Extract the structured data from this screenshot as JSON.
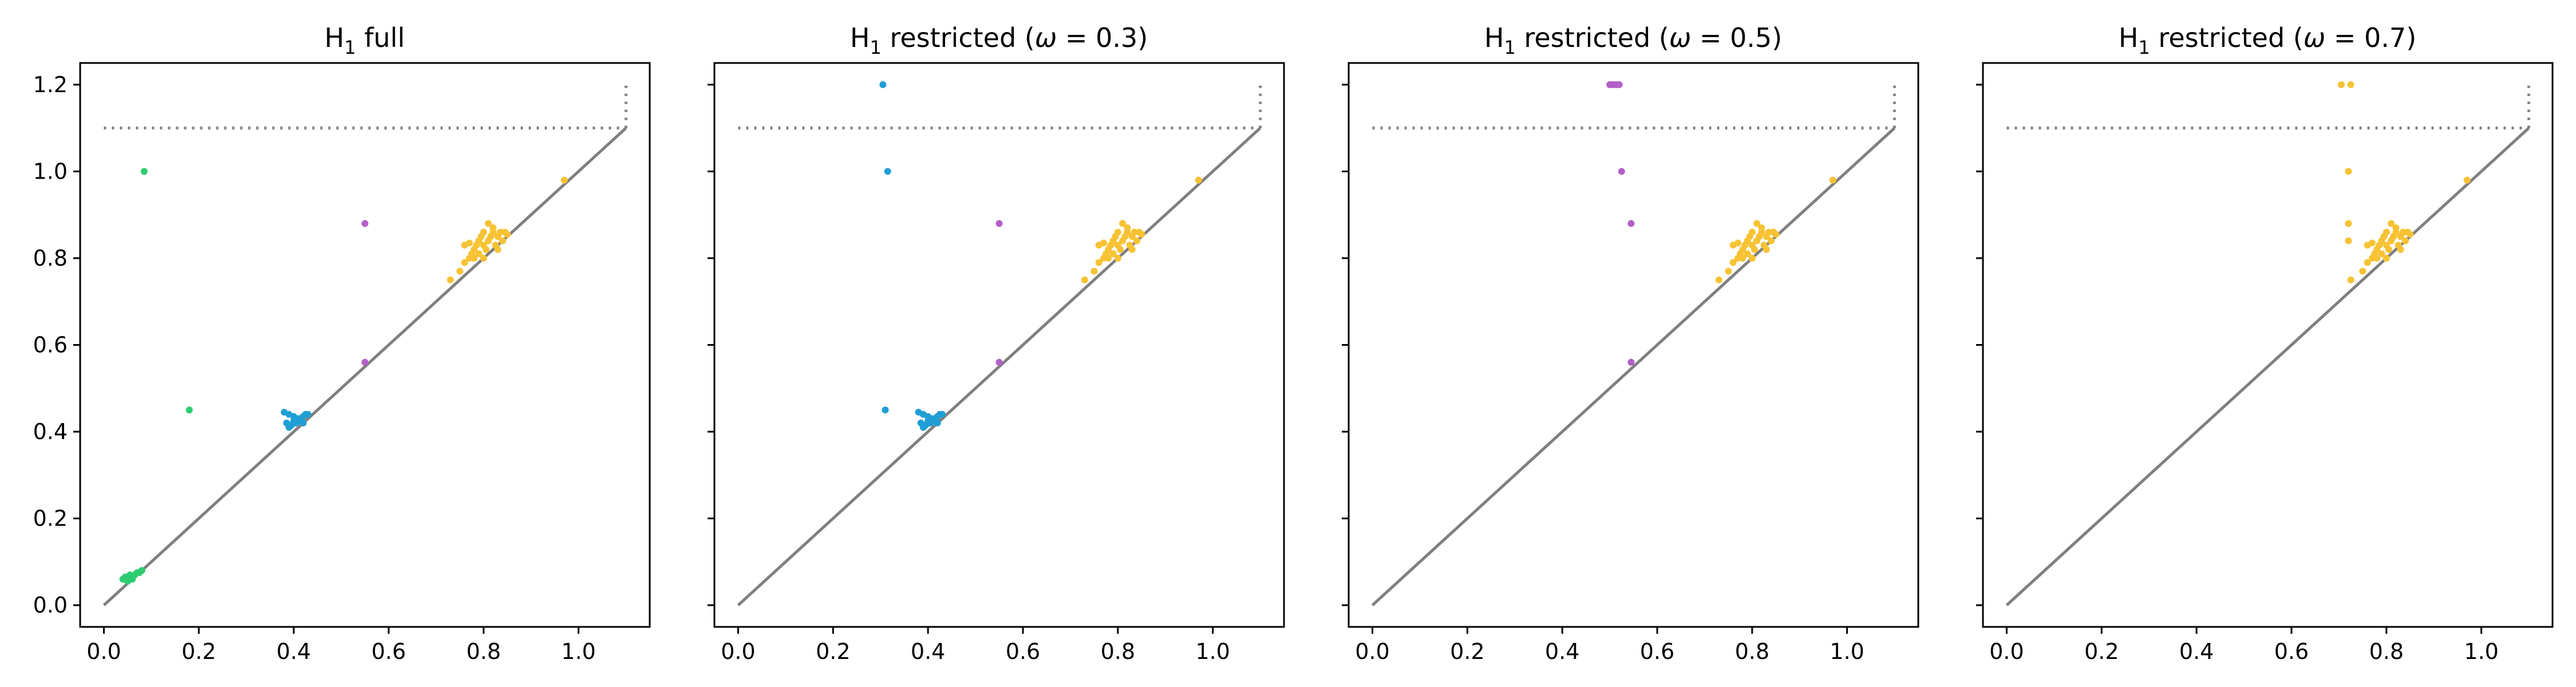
{
  "chart_data": [
    {
      "type": "scatter",
      "title_main": "H",
      "title_sub": "1",
      "title_rest": " full",
      "xlim": [
        -0.05,
        1.15
      ],
      "ylim": [
        -0.05,
        1.25
      ],
      "xticks": [
        "0.0",
        "0.2",
        "0.4",
        "0.6",
        "0.8",
        "1.0"
      ],
      "yticks": [
        "0.0",
        "0.2",
        "0.4",
        "0.6",
        "0.8",
        "1.0",
        "1.2"
      ],
      "show_ytick_labels": true,
      "diagonal": [
        0,
        1.1
      ],
      "infinity_line_y": 1.1,
      "series": [
        {
          "color": "#2ecc71",
          "points": [
            [
              0.04,
              0.06
            ],
            [
              0.045,
              0.065
            ],
            [
              0.05,
              0.06
            ],
            [
              0.055,
              0.07
            ],
            [
              0.06,
              0.065
            ],
            [
              0.065,
              0.07
            ],
            [
              0.07,
              0.075
            ],
            [
              0.075,
              0.075
            ],
            [
              0.08,
              0.08
            ],
            [
              0.05,
              0.055
            ],
            [
              0.06,
              0.06
            ],
            [
              0.085,
              1.0
            ],
            [
              0.18,
              0.45
            ]
          ]
        },
        {
          "color": "#1f9fd5",
          "points": [
            [
              0.38,
              0.445
            ],
            [
              0.39,
              0.44
            ],
            [
              0.4,
              0.435
            ],
            [
              0.39,
              0.41
            ],
            [
              0.395,
              0.415
            ],
            [
              0.4,
              0.42
            ],
            [
              0.405,
              0.42
            ],
            [
              0.41,
              0.425
            ],
            [
              0.415,
              0.43
            ],
            [
              0.42,
              0.435
            ],
            [
              0.425,
              0.44
            ],
            [
              0.43,
              0.44
            ],
            [
              0.4,
              0.425
            ],
            [
              0.41,
              0.43
            ],
            [
              0.42,
              0.42
            ],
            [
              0.385,
              0.42
            ]
          ]
        },
        {
          "color": "#b45fc9",
          "points": [
            [
              0.55,
              0.88
            ],
            [
              0.55,
              0.56
            ]
          ]
        },
        {
          "color": "#f7c234",
          "points": [
            [
              0.73,
              0.75
            ],
            [
              0.75,
              0.77
            ],
            [
              0.76,
              0.79
            ],
            [
              0.77,
              0.8
            ],
            [
              0.775,
              0.81
            ],
            [
              0.78,
              0.82
            ],
            [
              0.785,
              0.83
            ],
            [
              0.79,
              0.84
            ],
            [
              0.795,
              0.85
            ],
            [
              0.8,
              0.86
            ],
            [
              0.805,
              0.82
            ],
            [
              0.81,
              0.84
            ],
            [
              0.815,
              0.85
            ],
            [
              0.82,
              0.87
            ],
            [
              0.825,
              0.83
            ],
            [
              0.83,
              0.85
            ],
            [
              0.835,
              0.86
            ],
            [
              0.84,
              0.84
            ],
            [
              0.845,
              0.86
            ],
            [
              0.85,
              0.855
            ],
            [
              0.8,
              0.8
            ],
            [
              0.79,
              0.81
            ],
            [
              0.81,
              0.88
            ],
            [
              0.82,
              0.86
            ],
            [
              0.78,
              0.8
            ],
            [
              0.76,
              0.83
            ],
            [
              0.77,
              0.835
            ],
            [
              0.8,
              0.83
            ],
            [
              0.83,
              0.82
            ],
            [
              0.97,
              0.98
            ]
          ]
        }
      ]
    },
    {
      "type": "scatter",
      "title_main": "H",
      "title_sub": "1",
      "title_rest": " restricted (",
      "title_omega": "ω",
      "title_value": " = 0.3)",
      "xlim": [
        -0.05,
        1.15
      ],
      "ylim": [
        -0.05,
        1.25
      ],
      "xticks": [
        "0.0",
        "0.2",
        "0.4",
        "0.6",
        "0.8",
        "1.0"
      ],
      "yticks": [
        "0.0",
        "0.2",
        "0.4",
        "0.6",
        "0.8",
        "1.0",
        "1.2"
      ],
      "show_ytick_labels": false,
      "diagonal": [
        0,
        1.1
      ],
      "infinity_line_y": 1.1,
      "series": [
        {
          "color": "#1f9fd5",
          "points": [
            [
              0.305,
              1.2
            ],
            [
              0.315,
              1.0
            ],
            [
              0.31,
              0.45
            ],
            [
              0.38,
              0.445
            ],
            [
              0.39,
              0.44
            ],
            [
              0.4,
              0.435
            ],
            [
              0.39,
              0.41
            ],
            [
              0.395,
              0.415
            ],
            [
              0.4,
              0.42
            ],
            [
              0.405,
              0.42
            ],
            [
              0.41,
              0.425
            ],
            [
              0.415,
              0.43
            ],
            [
              0.42,
              0.435
            ],
            [
              0.425,
              0.44
            ],
            [
              0.43,
              0.44
            ],
            [
              0.4,
              0.425
            ],
            [
              0.41,
              0.43
            ],
            [
              0.42,
              0.42
            ],
            [
              0.385,
              0.42
            ]
          ]
        },
        {
          "color": "#b45fc9",
          "points": [
            [
              0.55,
              0.88
            ],
            [
              0.55,
              0.56
            ]
          ]
        },
        {
          "color": "#f7c234",
          "points": [
            [
              0.73,
              0.75
            ],
            [
              0.75,
              0.77
            ],
            [
              0.76,
              0.79
            ],
            [
              0.77,
              0.8
            ],
            [
              0.775,
              0.81
            ],
            [
              0.78,
              0.82
            ],
            [
              0.785,
              0.83
            ],
            [
              0.79,
              0.84
            ],
            [
              0.795,
              0.85
            ],
            [
              0.8,
              0.86
            ],
            [
              0.805,
              0.82
            ],
            [
              0.81,
              0.84
            ],
            [
              0.815,
              0.85
            ],
            [
              0.82,
              0.87
            ],
            [
              0.825,
              0.83
            ],
            [
              0.83,
              0.85
            ],
            [
              0.835,
              0.86
            ],
            [
              0.84,
              0.84
            ],
            [
              0.845,
              0.86
            ],
            [
              0.85,
              0.855
            ],
            [
              0.8,
              0.8
            ],
            [
              0.79,
              0.81
            ],
            [
              0.81,
              0.88
            ],
            [
              0.82,
              0.86
            ],
            [
              0.78,
              0.8
            ],
            [
              0.76,
              0.83
            ],
            [
              0.77,
              0.835
            ],
            [
              0.8,
              0.83
            ],
            [
              0.83,
              0.82
            ],
            [
              0.97,
              0.98
            ]
          ]
        }
      ]
    },
    {
      "type": "scatter",
      "title_main": "H",
      "title_sub": "1",
      "title_rest": " restricted (",
      "title_omega": "ω",
      "title_value": " = 0.5)",
      "xlim": [
        -0.05,
        1.15
      ],
      "ylim": [
        -0.05,
        1.25
      ],
      "xticks": [
        "0.0",
        "0.2",
        "0.4",
        "0.6",
        "0.8",
        "1.0"
      ],
      "yticks": [
        "0.0",
        "0.2",
        "0.4",
        "0.6",
        "0.8",
        "1.0",
        "1.2"
      ],
      "show_ytick_labels": false,
      "diagonal": [
        0,
        1.1
      ],
      "infinity_line_y": 1.1,
      "series": [
        {
          "color": "#b45fc9",
          "points": [
            [
              0.5,
              1.2
            ],
            [
              0.505,
              1.2
            ],
            [
              0.51,
              1.2
            ],
            [
              0.515,
              1.2
            ],
            [
              0.52,
              1.2
            ],
            [
              0.525,
              1.0
            ],
            [
              0.545,
              0.88
            ],
            [
              0.545,
              0.56
            ]
          ]
        },
        {
          "color": "#f7c234",
          "points": [
            [
              0.73,
              0.75
            ],
            [
              0.75,
              0.77
            ],
            [
              0.76,
              0.79
            ],
            [
              0.77,
              0.8
            ],
            [
              0.775,
              0.81
            ],
            [
              0.78,
              0.82
            ],
            [
              0.785,
              0.83
            ],
            [
              0.79,
              0.84
            ],
            [
              0.795,
              0.85
            ],
            [
              0.8,
              0.86
            ],
            [
              0.805,
              0.82
            ],
            [
              0.81,
              0.84
            ],
            [
              0.815,
              0.85
            ],
            [
              0.82,
              0.87
            ],
            [
              0.825,
              0.83
            ],
            [
              0.83,
              0.85
            ],
            [
              0.835,
              0.86
            ],
            [
              0.84,
              0.84
            ],
            [
              0.845,
              0.86
            ],
            [
              0.85,
              0.855
            ],
            [
              0.8,
              0.8
            ],
            [
              0.79,
              0.81
            ],
            [
              0.81,
              0.88
            ],
            [
              0.82,
              0.86
            ],
            [
              0.78,
              0.8
            ],
            [
              0.76,
              0.83
            ],
            [
              0.77,
              0.835
            ],
            [
              0.8,
              0.83
            ],
            [
              0.83,
              0.82
            ],
            [
              0.97,
              0.98
            ]
          ]
        }
      ]
    },
    {
      "type": "scatter",
      "title_main": "H",
      "title_sub": "1",
      "title_rest": " restricted (",
      "title_omega": "ω",
      "title_value": " = 0.7)",
      "xlim": [
        -0.05,
        1.15
      ],
      "ylim": [
        -0.05,
        1.25
      ],
      "xticks": [
        "0.0",
        "0.2",
        "0.4",
        "0.6",
        "0.8",
        "1.0"
      ],
      "yticks": [
        "0.0",
        "0.2",
        "0.4",
        "0.6",
        "0.8",
        "1.0",
        "1.2"
      ],
      "show_ytick_labels": false,
      "diagonal": [
        0,
        1.1
      ],
      "infinity_line_y": 1.1,
      "series": [
        {
          "color": "#f7c234",
          "points": [
            [
              0.705,
              1.2
            ],
            [
              0.725,
              1.2
            ],
            [
              0.72,
              1.0
            ],
            [
              0.72,
              0.88
            ],
            [
              0.72,
              0.84
            ],
            [
              0.725,
              0.75
            ],
            [
              0.75,
              0.77
            ],
            [
              0.76,
              0.79
            ],
            [
              0.77,
              0.8
            ],
            [
              0.775,
              0.81
            ],
            [
              0.78,
              0.82
            ],
            [
              0.785,
              0.83
            ],
            [
              0.79,
              0.84
            ],
            [
              0.795,
              0.85
            ],
            [
              0.8,
              0.86
            ],
            [
              0.805,
              0.82
            ],
            [
              0.81,
              0.84
            ],
            [
              0.815,
              0.85
            ],
            [
              0.82,
              0.87
            ],
            [
              0.825,
              0.83
            ],
            [
              0.83,
              0.85
            ],
            [
              0.835,
              0.86
            ],
            [
              0.84,
              0.84
            ],
            [
              0.845,
              0.86
            ],
            [
              0.85,
              0.855
            ],
            [
              0.8,
              0.8
            ],
            [
              0.79,
              0.81
            ],
            [
              0.81,
              0.88
            ],
            [
              0.82,
              0.86
            ],
            [
              0.78,
              0.8
            ],
            [
              0.76,
              0.83
            ],
            [
              0.77,
              0.835
            ],
            [
              0.8,
              0.83
            ],
            [
              0.83,
              0.82
            ],
            [
              0.97,
              0.98
            ]
          ]
        }
      ]
    }
  ]
}
